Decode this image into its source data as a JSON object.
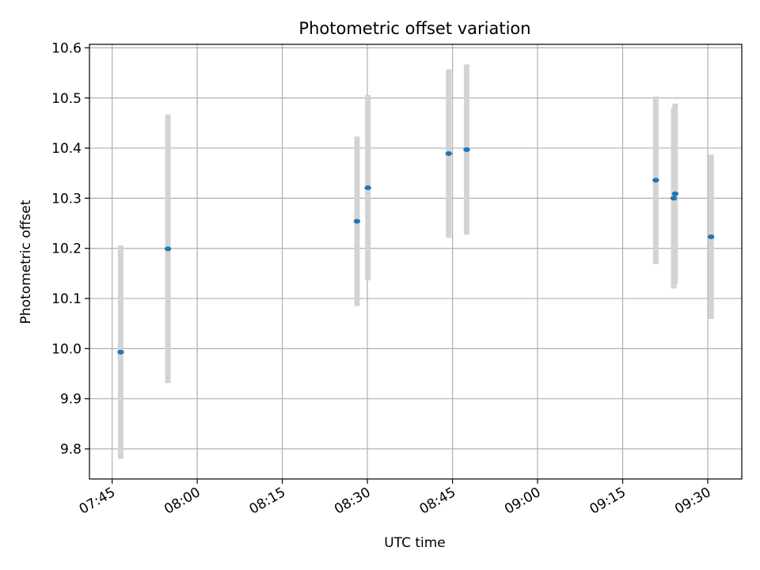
{
  "chart_data": {
    "type": "scatter",
    "title": "Photometric offset variation",
    "xlabel": "UTC time",
    "ylabel": "Photometric offset",
    "x_is_time": true,
    "xlim": [
      "07:41",
      "09:36"
    ],
    "ylim": [
      9.74,
      10.607
    ],
    "xticks": [
      "07:45",
      "08:00",
      "08:15",
      "08:30",
      "08:45",
      "09:00",
      "09:15",
      "09:30"
    ],
    "yticks": [
      9.8,
      9.9,
      10.0,
      10.1,
      10.2,
      10.3,
      10.4,
      10.5,
      10.6
    ],
    "ytick_labels": [
      "9.8",
      "9.9",
      "10.0",
      "10.1",
      "10.2",
      "10.3",
      "10.4",
      "10.5",
      "10.6"
    ],
    "grid": true,
    "marker_color": "#1f77b4",
    "errorbar_color": "#d3d3d3",
    "points": [
      {
        "time": "07:46:30",
        "y": 9.993,
        "err": 0.213
      },
      {
        "time": "07:54:50",
        "y": 10.199,
        "err": 0.268
      },
      {
        "time": "08:28:10",
        "y": 10.254,
        "err": 0.169
      },
      {
        "time": "08:30:05",
        "y": 10.321,
        "err": 0.185
      },
      {
        "time": "08:44:20",
        "y": 10.389,
        "err": 0.168
      },
      {
        "time": "08:47:30",
        "y": 10.397,
        "err": 0.17
      },
      {
        "time": "09:20:50",
        "y": 10.336,
        "err": 0.167
      },
      {
        "time": "09:24:00",
        "y": 10.3,
        "err": 0.18
      },
      {
        "time": "09:24:15",
        "y": 10.309,
        "err": 0.18
      },
      {
        "time": "09:30:35",
        "y": 10.223,
        "err": 0.164
      }
    ]
  }
}
